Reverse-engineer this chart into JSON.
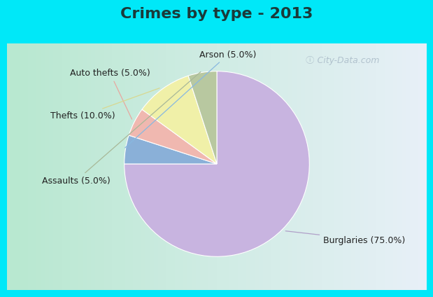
{
  "title": "Crimes by type - 2013",
  "title_fontsize": 16,
  "title_fontweight": "bold",
  "title_color": "#1a3a3a",
  "slices": [
    {
      "label": "Burglaries",
      "value": 75.0,
      "color": "#c8b4e0"
    },
    {
      "label": "Arson",
      "value": 5.0,
      "color": "#8ab0d8"
    },
    {
      "label": "Auto thefts",
      "value": 5.0,
      "color": "#f0b8b0"
    },
    {
      "label": "Thefts",
      "value": 10.0,
      "color": "#f0f0a8"
    },
    {
      "label": "Assaults",
      "value": 5.0,
      "color": "#b8c8a0"
    }
  ],
  "cyan_bar_color": "#00e8f8",
  "inner_bg_color_left": "#b8e8d0",
  "inner_bg_color_right": "#e8f0f8",
  "label_fontsize": 9,
  "label_color": "#222222",
  "line_color_arson": "#88b8e0",
  "line_color_autothefts": "#e8a8a0",
  "line_color_thefts": "#d8d890",
  "line_color_assaults": "#a8b898",
  "line_color_burglaries": "#b0a0c8"
}
